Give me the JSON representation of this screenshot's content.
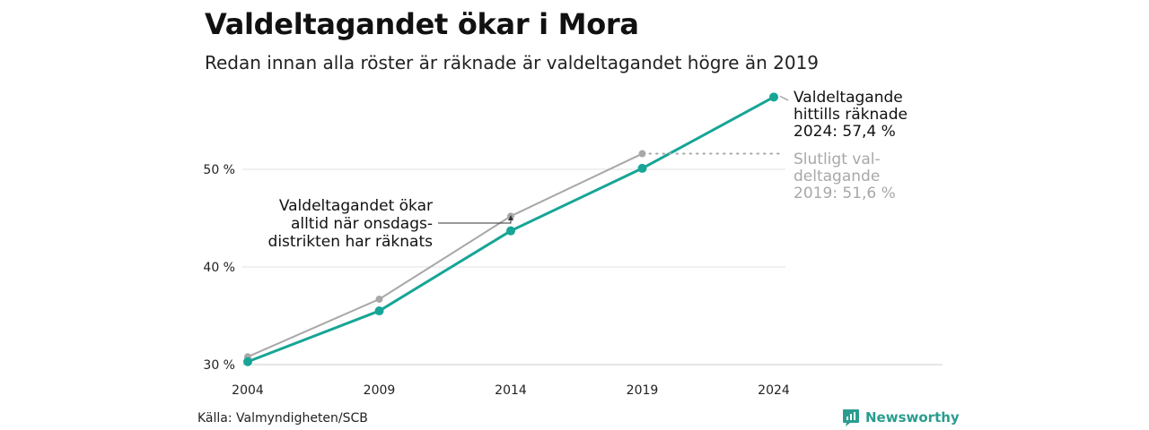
{
  "title": "Valdeltagandet ökar i Mora",
  "subtitle": "Redan innan alla röster är räknade är valdeltagandet högre än 2019",
  "source": "Källa: Valmyndigheten/SCB",
  "brand": {
    "name": "Newsworthy",
    "icon": "bar-chart-icon",
    "color": "#2a9d8f"
  },
  "chart_data": {
    "type": "line",
    "x": [
      2004,
      2009,
      2014,
      2019,
      2024
    ],
    "series": [
      {
        "id": "counted",
        "values": [
          30.3,
          35.5,
          43.7,
          50.1,
          57.4
        ],
        "color": "#17a596"
      },
      {
        "id": "final",
        "values": [
          30.8,
          36.7,
          45.2,
          51.6,
          null
        ],
        "color": "#a8a8a8"
      }
    ],
    "y_ticks": [
      "30 %",
      "40 %",
      "50 %"
    ],
    "y_tick_values": [
      30,
      40,
      50
    ],
    "x_ticks": [
      "2004",
      "2009",
      "2014",
      "2019",
      "2024"
    ],
    "ylim": [
      30,
      58
    ],
    "grid": true,
    "annotations": {
      "counted": [
        "Valdeltagande",
        "hittills räknade",
        "2024: 57,4 %"
      ],
      "final": [
        "Slutligt val-",
        "deltagande",
        "2019: 51,6 %"
      ],
      "wednesday": [
        "Valdeltagandet ökar",
        "alltid när onsdags-",
        "distrikten har räknats"
      ]
    }
  }
}
